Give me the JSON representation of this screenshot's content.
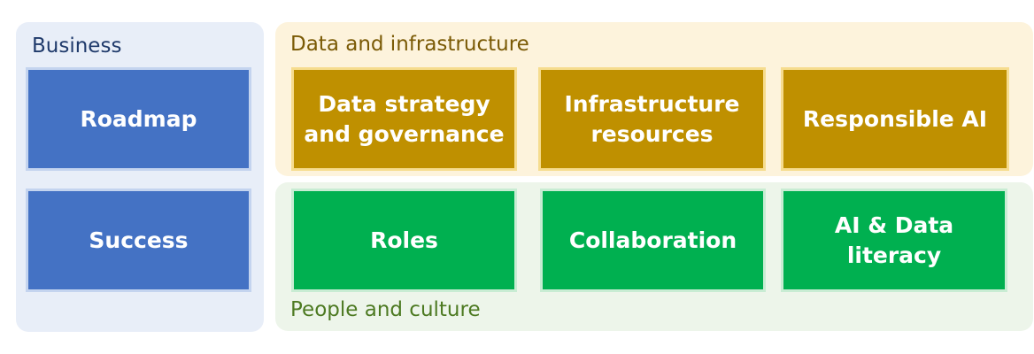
{
  "business": {
    "title": "Business",
    "items": [
      "Roadmap",
      "Success"
    ]
  },
  "data_infrastructure": {
    "title": "Data and infrastructure",
    "items": [
      "Data strategy and governance",
      "Infrastructure resources",
      "Responsible AI"
    ]
  },
  "people_culture": {
    "title": "People and culture",
    "items": [
      "Roles",
      "Collaboration",
      "AI & Data literacy"
    ]
  },
  "colors": {
    "business_panel": "#e8eef8",
    "business_box": "#4472c4",
    "data_panel": "#fdf3dc",
    "data_box": "#bf9000",
    "people_panel": "#edf5ea",
    "people_box": "#00b050"
  }
}
